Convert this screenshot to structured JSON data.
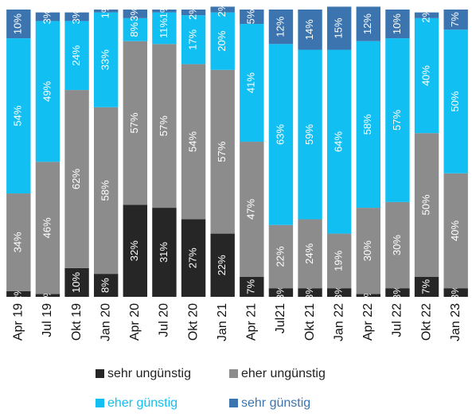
{
  "chart_data": {
    "type": "stacked-bar",
    "categories": [
      "Apr 19",
      "Jul 19",
      "Okt 19",
      "Jan 20",
      "Apr 20",
      "Jul 20",
      "Okt 20",
      "Jan 21",
      "Apr 21",
      "Jul21",
      "Okt 21",
      "Jan 22",
      "Apr 22",
      "Jul 22",
      "Okt 22",
      "Jan 23"
    ],
    "ylim": [
      0,
      100
    ],
    "series": [
      {
        "name": "sehr ungünstig",
        "color": "#262626",
        "values": [
          2,
          1,
          10,
          8,
          32,
          31,
          27,
          22,
          7,
          3,
          3,
          3,
          1,
          3,
          7,
          3
        ],
        "value_labels": [
          "2%",
          "1%",
          "10%",
          "8%",
          "32%",
          "31%",
          "27%",
          "22%",
          "7%",
          "3%",
          "3%",
          "3%",
          "1%",
          "3%",
          "7%",
          "3%"
        ]
      },
      {
        "name": "eher ungünstig",
        "color": "#8c8c8c",
        "values": [
          34,
          46,
          62,
          58,
          57,
          57,
          54,
          57,
          47,
          22,
          24,
          19,
          30,
          30,
          50,
          40
        ],
        "value_labels": [
          "34%",
          "46%",
          "62%",
          "58%",
          "57%",
          "57%",
          "54%",
          "57%",
          "47%",
          "22%",
          "24%",
          "19%",
          "30%",
          "30%",
          "50%",
          "40%"
        ]
      },
      {
        "name": "eher günstig",
        "color": "#12bff2",
        "values": [
          54,
          49,
          24,
          33,
          8,
          11,
          17,
          20,
          41,
          63,
          59,
          64,
          58,
          57,
          40,
          50
        ],
        "value_labels": [
          "54%",
          "49%",
          "24%",
          "33%",
          "8%",
          "11%",
          "17%",
          "20%",
          "41%",
          "63%",
          "59%",
          "64%",
          "58%",
          "57%",
          "40%",
          "50%"
        ]
      },
      {
        "name": "sehr günstig",
        "color": "#3b74ae",
        "values": [
          10,
          3,
          3,
          1,
          3,
          1,
          2,
          2,
          5,
          12,
          14,
          15,
          12,
          10,
          2,
          7
        ],
        "value_labels": [
          "10%",
          "3%",
          "3%",
          "1%",
          "3%",
          "1%",
          "2%",
          "2%",
          "5%",
          "12%",
          "14%",
          "15%",
          "12%",
          "10%",
          "2%",
          "7%"
        ]
      }
    ]
  }
}
